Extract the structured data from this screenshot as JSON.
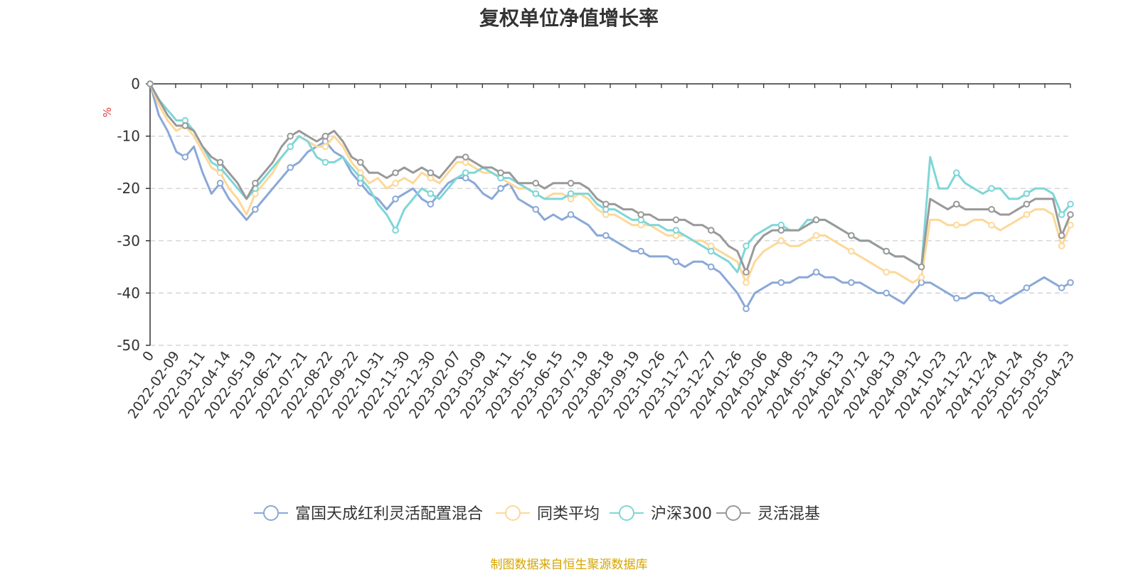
{
  "chart_data": {
    "type": "line",
    "title": "复权单位净值增长率",
    "ylabel": "%",
    "ylim": [
      -50,
      0
    ],
    "yticks": [
      "0",
      "-10",
      "-20",
      "-30",
      "-40",
      "-50"
    ],
    "x_ticks": [
      "0",
      "2022-02-09",
      "2022-03-11",
      "2022-04-14",
      "2022-05-19",
      "2022-06-21",
      "2022-07-21",
      "2022-08-22",
      "2022-09-22",
      "2022-10-31",
      "2022-11-30",
      "2022-12-30",
      "2023-02-07",
      "2023-03-09",
      "2023-04-11",
      "2023-05-16",
      "2023-06-15",
      "2023-07-19",
      "2023-08-18",
      "2023-09-19",
      "2023-10-26",
      "2023-11-27",
      "2023-12-27",
      "2024-01-26",
      "2024-03-06",
      "2024-04-08",
      "2024-05-13",
      "2024-06-13",
      "2024-07-12",
      "2024-08-13",
      "2024-09-12",
      "2024-10-23",
      "2024-11-22",
      "2024-12-24",
      "2025-01-24",
      "2025-03-05",
      "2025-04-23"
    ],
    "grid": true,
    "legend_position": "bottom",
    "series": [
      {
        "name": "富国天成红利灵活配置混合",
        "color": "#8aa8d8",
        "values": [
          0,
          -6,
          -9,
          -13,
          -14,
          -12,
          -17,
          -21,
          -19,
          -22,
          -24,
          -26,
          -24,
          -22,
          -20,
          -18,
          -16,
          -15,
          -13,
          -12,
          -11,
          -13,
          -14,
          -17,
          -19,
          -21,
          -22,
          -24,
          -22,
          -21,
          -20,
          -22,
          -23,
          -21,
          -19,
          -18,
          -18,
          -19,
          -21,
          -22,
          -20,
          -19,
          -22,
          -23,
          -24,
          -26,
          -25,
          -26,
          -25,
          -26,
          -27,
          -29,
          -29,
          -30,
          -31,
          -32,
          -32,
          -33,
          -33,
          -33,
          -34,
          -35,
          -34,
          -34,
          -35,
          -36,
          -38,
          -40,
          -43,
          -40,
          -39,
          -38,
          -38,
          -38,
          -37,
          -37,
          -36,
          -37,
          -37,
          -38,
          -38,
          -38,
          -39,
          -40,
          -40,
          -41,
          -42,
          -40,
          -38,
          -38,
          -39,
          -40,
          -41,
          -41,
          -40,
          -40,
          -41,
          -42,
          -41,
          -40,
          -39,
          -38,
          -37,
          -38,
          -39,
          -38
        ]
      },
      {
        "name": "同类平均",
        "color": "#fdd898",
        "values": [
          0,
          -4,
          -7,
          -9,
          -8,
          -10,
          -13,
          -16,
          -17,
          -20,
          -22,
          -25,
          -21,
          -19,
          -17,
          -14,
          -12,
          -10,
          -11,
          -12,
          -12,
          -10,
          -12,
          -15,
          -17,
          -19,
          -18,
          -20,
          -19,
          -18,
          -19,
          -17,
          -18,
          -19,
          -17,
          -15,
          -15,
          -16,
          -17,
          -17,
          -18,
          -19,
          -20,
          -20,
          -21,
          -22,
          -21,
          -21,
          -22,
          -21,
          -22,
          -24,
          -25,
          -25,
          -26,
          -27,
          -27,
          -27,
          -28,
          -29,
          -29,
          -29,
          -30,
          -30,
          -31,
          -32,
          -33,
          -34,
          -38,
          -34,
          -32,
          -31,
          -30,
          -31,
          -31,
          -30,
          -29,
          -29,
          -30,
          -31,
          -32,
          -33,
          -34,
          -35,
          -36,
          -36,
          -37,
          -38,
          -37,
          -26,
          -26,
          -27,
          -27,
          -27,
          -26,
          -26,
          -27,
          -28,
          -27,
          -26,
          -25,
          -24,
          -24,
          -25,
          -31,
          -27
        ]
      },
      {
        "name": "沪深300",
        "color": "#7fd6d7",
        "values": [
          0,
          -3,
          -5,
          -7,
          -7,
          -9,
          -12,
          -15,
          -16,
          -18,
          -20,
          -22,
          -20,
          -18,
          -16,
          -14,
          -12,
          -10,
          -11,
          -14,
          -15,
          -15,
          -14,
          -16,
          -18,
          -20,
          -23,
          -25,
          -28,
          -24,
          -22,
          -20,
          -21,
          -22,
          -20,
          -18,
          -17,
          -17,
          -16,
          -17,
          -18,
          -18,
          -19,
          -20,
          -21,
          -22,
          -22,
          -22,
          -21,
          -21,
          -21,
          -23,
          -24,
          -24,
          -25,
          -26,
          -26,
          -27,
          -27,
          -28,
          -28,
          -29,
          -30,
          -31,
          -32,
          -33,
          -34,
          -36,
          -31,
          -29,
          -28,
          -27,
          -27,
          -28,
          -28,
          -26,
          -26,
          -26,
          -27,
          -28,
          -29,
          -30,
          -30,
          -31,
          -32,
          -33,
          -33,
          -34,
          -35,
          -14,
          -20,
          -20,
          -17,
          -19,
          -20,
          -21,
          -20,
          -20,
          -22,
          -22,
          -21,
          -20,
          -20,
          -21,
          -25,
          -23
        ]
      },
      {
        "name": "灵活混基",
        "color": "#999999",
        "values": [
          0,
          -3,
          -6,
          -8,
          -8,
          -9,
          -12,
          -14,
          -15,
          -17,
          -19,
          -22,
          -19,
          -17,
          -15,
          -12,
          -10,
          -9,
          -10,
          -11,
          -10,
          -9,
          -11,
          -14,
          -15,
          -17,
          -17,
          -18,
          -17,
          -16,
          -17,
          -16,
          -17,
          -18,
          -16,
          -14,
          -14,
          -15,
          -16,
          -16,
          -17,
          -17,
          -19,
          -19,
          -19,
          -20,
          -19,
          -19,
          -19,
          -19,
          -20,
          -22,
          -23,
          -23,
          -24,
          -24,
          -25,
          -25,
          -26,
          -26,
          -26,
          -26,
          -27,
          -27,
          -28,
          -29,
          -31,
          -32,
          -36,
          -31,
          -29,
          -28,
          -28,
          -28,
          -28,
          -27,
          -26,
          -26,
          -27,
          -28,
          -29,
          -30,
          -30,
          -31,
          -32,
          -33,
          -33,
          -34,
          -35,
          -22,
          -23,
          -24,
          -23,
          -24,
          -24,
          -24,
          -24,
          -25,
          -25,
          -24,
          -23,
          -22,
          -22,
          -22,
          -29,
          -25
        ]
      }
    ]
  },
  "legend": [
    {
      "label": "富国天成红利灵活配置混合",
      "color": "#8aa8d8"
    },
    {
      "label": "同类平均",
      "color": "#fdd898"
    },
    {
      "label": "沪深300",
      "color": "#7fd6d7"
    },
    {
      "label": "灵活混基",
      "color": "#999999"
    }
  ],
  "source_note": "制图数据来自恒生聚源数据库"
}
